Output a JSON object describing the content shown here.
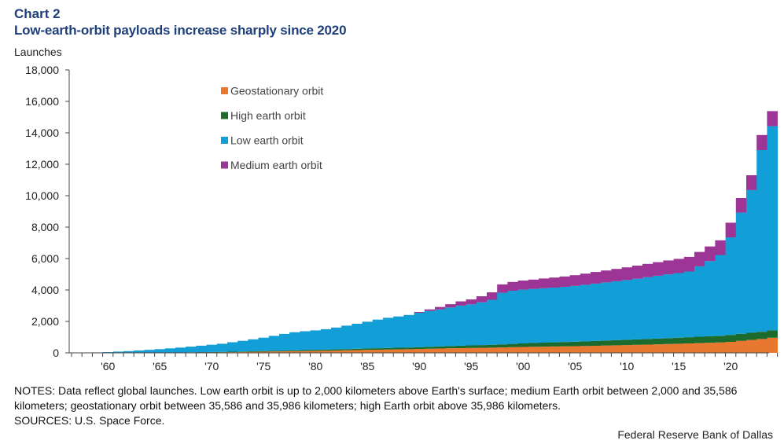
{
  "header": {
    "chart_number": "Chart 2",
    "title": "Low-earth-orbit payloads increase sharply since 2020",
    "y_unit": "Launches"
  },
  "notes": {
    "line1": "NOTES: Data reflect global launches. Low earth orbit is up to 2,000 kilometers above Earth's surface; medium Earth orbit between 2,000 and 35,586 kilometers; geostationary orbit between 35,586 and 35,986 kilometers; high Earth orbit above 35,986 kilometers.",
    "line2": "SOURCES: U.S. Space Force."
  },
  "credit": "Federal Reserve Bank of Dallas",
  "colors": {
    "geo": "#e8782f",
    "high": "#1c6b2c",
    "low": "#129ed6",
    "medium": "#9c3595",
    "axis": "#444444",
    "title": "#1f3f7a"
  },
  "chart_data": {
    "type": "bar",
    "stacked": true,
    "title": "Low-earth-orbit payloads increase sharply since 2020",
    "xlabel": "",
    "ylabel": "Launches",
    "ylim": [
      0,
      18000
    ],
    "yticks": [
      0,
      2000,
      4000,
      6000,
      8000,
      10000,
      12000,
      14000,
      16000,
      18000
    ],
    "ytick_labels": [
      "0",
      "2,000",
      "4,000",
      "6,000",
      "8,000",
      "10,000",
      "12,000",
      "14,000",
      "16,000",
      "18,000"
    ],
    "xtick_years": [
      1960,
      1965,
      1970,
      1975,
      1980,
      1985,
      1990,
      1995,
      2000,
      2005,
      2010,
      2015,
      2020
    ],
    "xtick_labels": [
      "'60",
      "'65",
      "'70",
      "'75",
      "'80",
      "'85",
      "'90",
      "'95",
      "'00",
      "'05",
      "'10",
      "'15",
      "'20"
    ],
    "legend_position": "top-center",
    "categories": [
      1957,
      1958,
      1959,
      1960,
      1961,
      1962,
      1963,
      1964,
      1965,
      1966,
      1967,
      1968,
      1969,
      1970,
      1971,
      1972,
      1973,
      1974,
      1975,
      1976,
      1977,
      1978,
      1979,
      1980,
      1981,
      1982,
      1983,
      1984,
      1985,
      1986,
      1987,
      1988,
      1989,
      1990,
      1991,
      1992,
      1993,
      1994,
      1995,
      1996,
      1997,
      1998,
      1999,
      2000,
      2001,
      2002,
      2003,
      2004,
      2005,
      2006,
      2007,
      2008,
      2009,
      2010,
      2011,
      2012,
      2013,
      2014,
      2015,
      2016,
      2017,
      2018,
      2019,
      2020,
      2021,
      2022,
      2023,
      2024
    ],
    "series": [
      {
        "name": "Geostationary orbit",
        "values": [
          0,
          0,
          0,
          0,
          0,
          0,
          0,
          0,
          5,
          10,
          15,
          20,
          25,
          30,
          35,
          45,
          55,
          65,
          75,
          85,
          95,
          105,
          115,
          125,
          135,
          145,
          160,
          175,
          190,
          200,
          210,
          220,
          230,
          245,
          260,
          275,
          290,
          300,
          310,
          320,
          330,
          345,
          360,
          375,
          385,
          395,
          405,
          415,
          425,
          435,
          450,
          465,
          480,
          495,
          510,
          525,
          540,
          560,
          580,
          600,
          620,
          640,
          660,
          700,
          760,
          820,
          880,
          960
        ]
      },
      {
        "name": "High earth orbit",
        "values": [
          0,
          0,
          0,
          0,
          0,
          0,
          0,
          0,
          0,
          5,
          10,
          15,
          20,
          25,
          25,
          30,
          30,
          35,
          40,
          45,
          50,
          55,
          60,
          65,
          70,
          75,
          80,
          85,
          90,
          95,
          100,
          105,
          110,
          115,
          125,
          135,
          145,
          155,
          165,
          175,
          185,
          195,
          210,
          225,
          240,
          255,
          265,
          275,
          285,
          295,
          305,
          315,
          325,
          335,
          345,
          355,
          365,
          375,
          385,
          395,
          405,
          415,
          425,
          440,
          450,
          455,
          460,
          470
        ]
      },
      {
        "name": "Low earth orbit",
        "values": [
          5,
          15,
          30,
          50,
          80,
          110,
          150,
          190,
          230,
          270,
          310,
          360,
          410,
          460,
          520,
          600,
          680,
          760,
          850,
          950,
          1060,
          1150,
          1200,
          1240,
          1300,
          1390,
          1490,
          1590,
          1700,
          1820,
          1920,
          1990,
          2070,
          2190,
          2280,
          2350,
          2450,
          2550,
          2610,
          2720,
          2860,
          3280,
          3380,
          3420,
          3440,
          3460,
          3480,
          3510,
          3550,
          3600,
          3650,
          3700,
          3750,
          3800,
          3860,
          3930,
          4000,
          4060,
          4110,
          4180,
          4480,
          4780,
          5140,
          6210,
          7710,
          9080,
          11560,
          12990
        ]
      },
      {
        "name": "Medium earth orbit",
        "values": [
          0,
          0,
          0,
          0,
          0,
          0,
          0,
          0,
          0,
          0,
          0,
          0,
          0,
          0,
          0,
          0,
          0,
          0,
          0,
          0,
          0,
          0,
          0,
          0,
          0,
          0,
          0,
          0,
          0,
          0,
          0,
          0,
          0,
          50,
          100,
          160,
          210,
          270,
          315,
          385,
          475,
          535,
          560,
          580,
          595,
          620,
          640,
          660,
          680,
          710,
          740,
          760,
          785,
          810,
          835,
          850,
          865,
          885,
          905,
          930,
          915,
          935,
          935,
          930,
          930,
          945,
          960,
          960
        ]
      }
    ]
  }
}
